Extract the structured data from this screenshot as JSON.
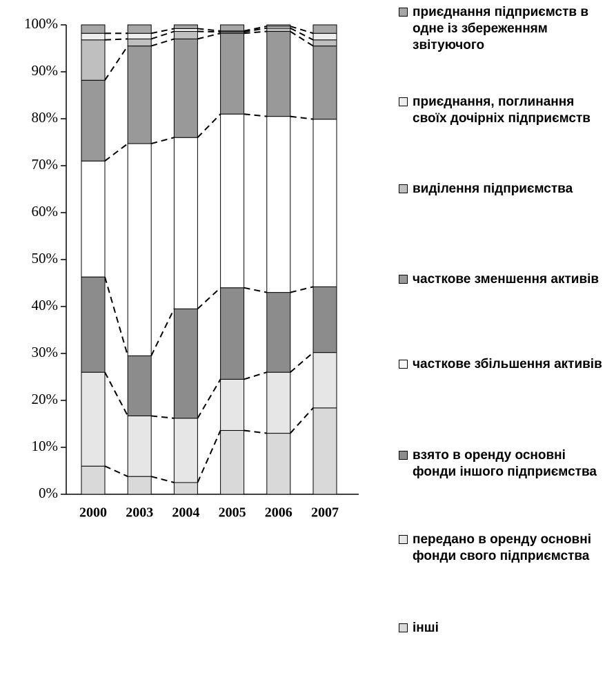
{
  "chart_data": {
    "type": "stacked_bar_100",
    "categories": [
      "2000",
      "2003",
      "2004",
      "2005",
      "2006",
      "2007"
    ],
    "series": [
      {
        "name": "інші",
        "color": "#d9d9d9",
        "values": [
          6,
          3.8,
          2.5,
          13.6,
          13,
          18.4
        ]
      },
      {
        "name": "передано в оренду основні фонди свого підприємства",
        "color": "#e6e6e6",
        "values": [
          20,
          12.9,
          13.7,
          10.9,
          13,
          11.8
        ]
      },
      {
        "name": "взято в оренду основні фонди іншого підприємства",
        "color": "#8c8c8c",
        "values": [
          20.3,
          12.8,
          23.3,
          19.5,
          17,
          14
        ]
      },
      {
        "name": "часткове збільшення активів",
        "color": "#ffffff",
        "values": [
          24.7,
          45.2,
          36.5,
          37,
          37.5,
          35.7
        ]
      },
      {
        "name": "часткове зменшення активів",
        "color": "#999999",
        "values": [
          17.2,
          20.8,
          21,
          17.2,
          18.1,
          15.6
        ]
      },
      {
        "name": "виділення підприємства",
        "color": "#bfbfbf",
        "values": [
          8.6,
          1.5,
          1.6,
          0.3,
          0.7,
          1.3
        ]
      },
      {
        "name": "приєднання, поглинання своїх дочірніх підприємств",
        "color": "#eeeeee",
        "values": [
          1.4,
          1.2,
          0.6,
          0.2,
          0.4,
          1.4
        ]
      },
      {
        "name": "приєднання підприємств в одне із збереженням звітуючого",
        "color": "#a6a6a6",
        "values": [
          1.8,
          1.8,
          0.8,
          1.3,
          0.3,
          1.8
        ]
      }
    ],
    "ylim": [
      0,
      100
    ],
    "yticks": [
      {
        "value": 0,
        "label": "0%"
      },
      {
        "value": 10,
        "label": "10%"
      },
      {
        "value": 20,
        "label": "20%"
      },
      {
        "value": 30,
        "label": "30%"
      },
      {
        "value": 40,
        "label": "40%"
      },
      {
        "value": 50,
        "label": "50%"
      },
      {
        "value": 60,
        "label": "60%"
      },
      {
        "value": 70,
        "label": "70%"
      },
      {
        "value": 80,
        "label": "80%"
      },
      {
        "value": 90,
        "label": "90%"
      },
      {
        "value": 100,
        "label": "100%"
      }
    ]
  }
}
